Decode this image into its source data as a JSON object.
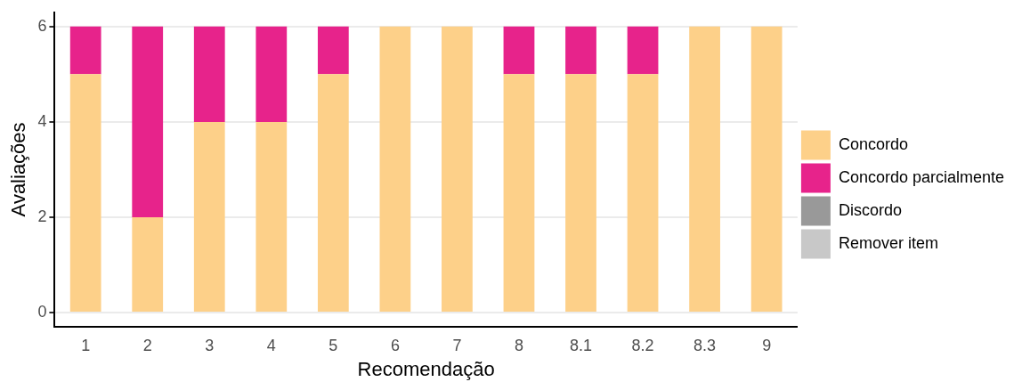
{
  "chart_data": {
    "type": "bar",
    "stacked": true,
    "xlabel": "Recomendação",
    "ylabel": "Avaliações",
    "categories": [
      "1",
      "2",
      "3",
      "4",
      "5",
      "6",
      "7",
      "8",
      "8.1",
      "8.2",
      "8.3",
      "9"
    ],
    "series": [
      {
        "name": "Concordo",
        "color": "#fdd089",
        "values": [
          5,
          2,
          4,
          4,
          5,
          6,
          6,
          5,
          5,
          5,
          6,
          6
        ]
      },
      {
        "name": "Concordo parcialmente",
        "color": "#e7238b",
        "values": [
          1,
          4,
          2,
          2,
          1,
          0,
          0,
          1,
          1,
          1,
          0,
          0
        ]
      },
      {
        "name": "Discordo",
        "color": "#999999",
        "values": [
          0,
          0,
          0,
          0,
          0,
          0,
          0,
          0,
          0,
          0,
          0,
          0
        ]
      },
      {
        "name": "Remover item",
        "color": "#c8c8c8",
        "values": [
          0,
          0,
          0,
          0,
          0,
          0,
          0,
          0,
          0,
          0,
          0,
          0
        ]
      }
    ],
    "ylim": [
      -0.3,
      6.3
    ],
    "yticks": [
      0,
      2,
      4,
      6
    ],
    "grid": "y",
    "legend": "right"
  }
}
